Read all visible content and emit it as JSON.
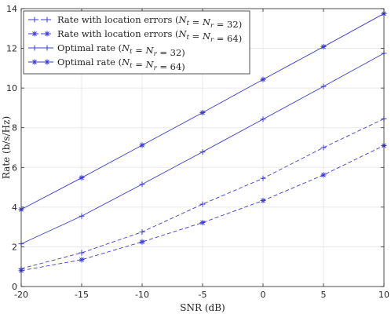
{
  "chart_data": {
    "type": "line",
    "title": "",
    "xlabel": "SNR (dB)",
    "ylabel": "Rate (b/s/Hz)",
    "xlim": [
      -20,
      10
    ],
    "ylim": [
      0,
      14
    ],
    "xticks": [
      -20,
      -15,
      -10,
      -5,
      0,
      5,
      10
    ],
    "yticks": [
      0,
      2,
      4,
      6,
      8,
      10,
      12,
      14
    ],
    "grid": true,
    "legend_position": "top-left",
    "line_color": "#3b3bdc",
    "x": [
      -20,
      -15,
      -10,
      -5,
      0,
      5,
      10
    ],
    "series": [
      {
        "name_prefix": "Rate with location errors (",
        "name_math": "N_t = N_r = 32",
        "name_suffix": ")",
        "line_style": "dashed",
        "marker": "plus",
        "values": [
          0.9,
          1.7,
          2.75,
          4.15,
          5.45,
          7.0,
          8.45
        ]
      },
      {
        "name_prefix": "Rate with location errors (",
        "name_math": "N_t = N_r = 64",
        "name_suffix": ")",
        "line_style": "dashed",
        "marker": "asterisk",
        "values": [
          0.8,
          1.35,
          2.25,
          3.22,
          4.33,
          5.62,
          7.1
        ]
      },
      {
        "name_prefix": "Optimal rate (",
        "name_math": "N_t = N_r = 32",
        "name_suffix": ")",
        "line_style": "solid",
        "marker": "plus",
        "values": [
          2.15,
          3.55,
          5.15,
          6.78,
          8.43,
          10.08,
          11.75
        ]
      },
      {
        "name_prefix": "Optimal rate (",
        "name_math": "N_t = N_r = 64",
        "name_suffix": ")",
        "line_style": "solid",
        "marker": "asterisk",
        "values": [
          3.88,
          5.48,
          7.12,
          8.76,
          10.43,
          12.08,
          13.75
        ]
      }
    ]
  }
}
